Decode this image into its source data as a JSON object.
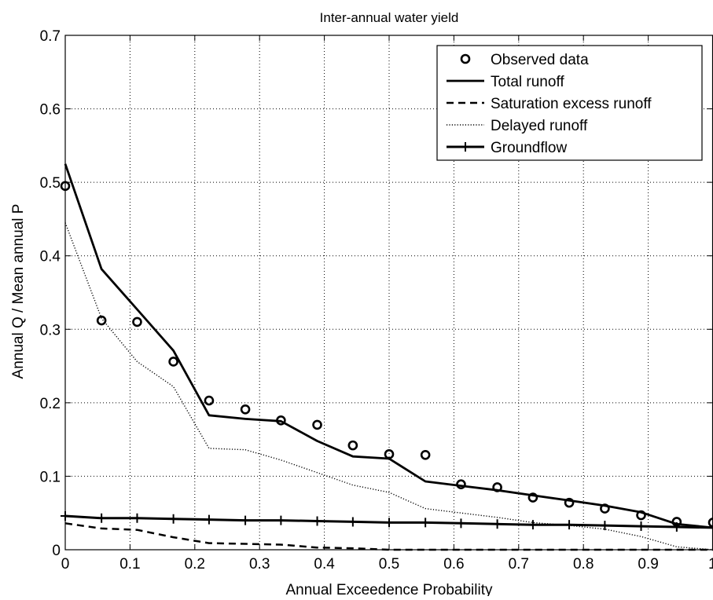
{
  "chart_data": {
    "type": "line",
    "title": "Inter-annual water yield",
    "xlabel": "Annual Exceedence Probability",
    "ylabel": "Annual Q / Mean annual P",
    "xlim": [
      0,
      1
    ],
    "ylim": [
      0,
      0.7
    ],
    "grid": true,
    "legend_position": "top-right",
    "x_ticks": [
      0,
      0.1,
      0.2,
      0.3,
      0.4,
      0.5,
      0.6,
      0.7,
      0.8,
      0.9,
      1
    ],
    "x_tick_labels": [
      "0",
      "0.1",
      "0.2",
      "0.3",
      "0.4",
      "0.5",
      "0.6",
      "0.7",
      "0.8",
      "0.9",
      "1"
    ],
    "y_ticks": [
      0,
      0.1,
      0.2,
      0.3,
      0.4,
      0.5,
      0.6,
      0.7
    ],
    "y_tick_labels": [
      "0",
      "0.1",
      "0.2",
      "0.3",
      "0.4",
      "0.5",
      "0.6",
      "0.7"
    ],
    "series": [
      {
        "name": "Observed data",
        "style": "circles",
        "color": "#000000",
        "x": [
          0,
          0.056,
          0.111,
          0.167,
          0.222,
          0.278,
          0.333,
          0.389,
          0.444,
          0.5,
          0.556,
          0.611,
          0.667,
          0.722,
          0.778,
          0.833,
          0.889,
          0.944,
          1.0
        ],
        "y": [
          0.495,
          0.312,
          0.31,
          0.256,
          0.203,
          0.191,
          0.176,
          0.17,
          0.142,
          0.13,
          0.129,
          0.089,
          0.085,
          0.071,
          0.064,
          0.056,
          0.047,
          0.038,
          0.037
        ]
      },
      {
        "name": "Total runoff",
        "style": "solid",
        "color": "#000000",
        "x": [
          0,
          0.056,
          0.111,
          0.167,
          0.222,
          0.278,
          0.333,
          0.389,
          0.444,
          0.5,
          0.556,
          0.611,
          0.667,
          0.722,
          0.778,
          0.833,
          0.889,
          0.944,
          1.0
        ],
        "y": [
          0.525,
          0.382,
          0.327,
          0.271,
          0.183,
          0.178,
          0.175,
          0.148,
          0.127,
          0.124,
          0.093,
          0.087,
          0.081,
          0.074,
          0.067,
          0.06,
          0.051,
          0.035,
          0.03
        ]
      },
      {
        "name": "Saturation excess runoff",
        "style": "dashed",
        "color": "#000000",
        "x": [
          0,
          0.056,
          0.111,
          0.167,
          0.222,
          0.278,
          0.333,
          0.389,
          0.444,
          0.5,
          0.556,
          0.611,
          0.667,
          0.722,
          0.778,
          0.833,
          0.889,
          0.944,
          1.0
        ],
        "y": [
          0.036,
          0.029,
          0.027,
          0.017,
          0.009,
          0.008,
          0.007,
          0.003,
          0.002,
          0.0,
          0.0,
          0.0,
          0.0,
          0.0,
          0.0,
          0.0,
          0.0,
          0.0,
          0.0
        ]
      },
      {
        "name": "Delayed runoff",
        "style": "dotted",
        "color": "#000000",
        "x": [
          0,
          0.056,
          0.111,
          0.167,
          0.222,
          0.278,
          0.333,
          0.389,
          0.444,
          0.5,
          0.556,
          0.611,
          0.667,
          0.722,
          0.778,
          0.833,
          0.889,
          0.944,
          1.0
        ],
        "y": [
          0.445,
          0.315,
          0.256,
          0.222,
          0.138,
          0.136,
          0.122,
          0.105,
          0.088,
          0.078,
          0.056,
          0.05,
          0.044,
          0.037,
          0.033,
          0.028,
          0.018,
          0.004,
          0.0
        ]
      },
      {
        "name": "Groundflow",
        "style": "solid-plus",
        "color": "#000000",
        "x": [
          0,
          0.056,
          0.111,
          0.167,
          0.222,
          0.278,
          0.333,
          0.389,
          0.444,
          0.5,
          0.556,
          0.611,
          0.667,
          0.722,
          0.778,
          0.833,
          0.889,
          0.944,
          1.0
        ],
        "y": [
          0.046,
          0.043,
          0.043,
          0.042,
          0.041,
          0.04,
          0.04,
          0.039,
          0.038,
          0.037,
          0.037,
          0.036,
          0.035,
          0.034,
          0.034,
          0.033,
          0.032,
          0.031,
          0.03
        ]
      }
    ]
  }
}
